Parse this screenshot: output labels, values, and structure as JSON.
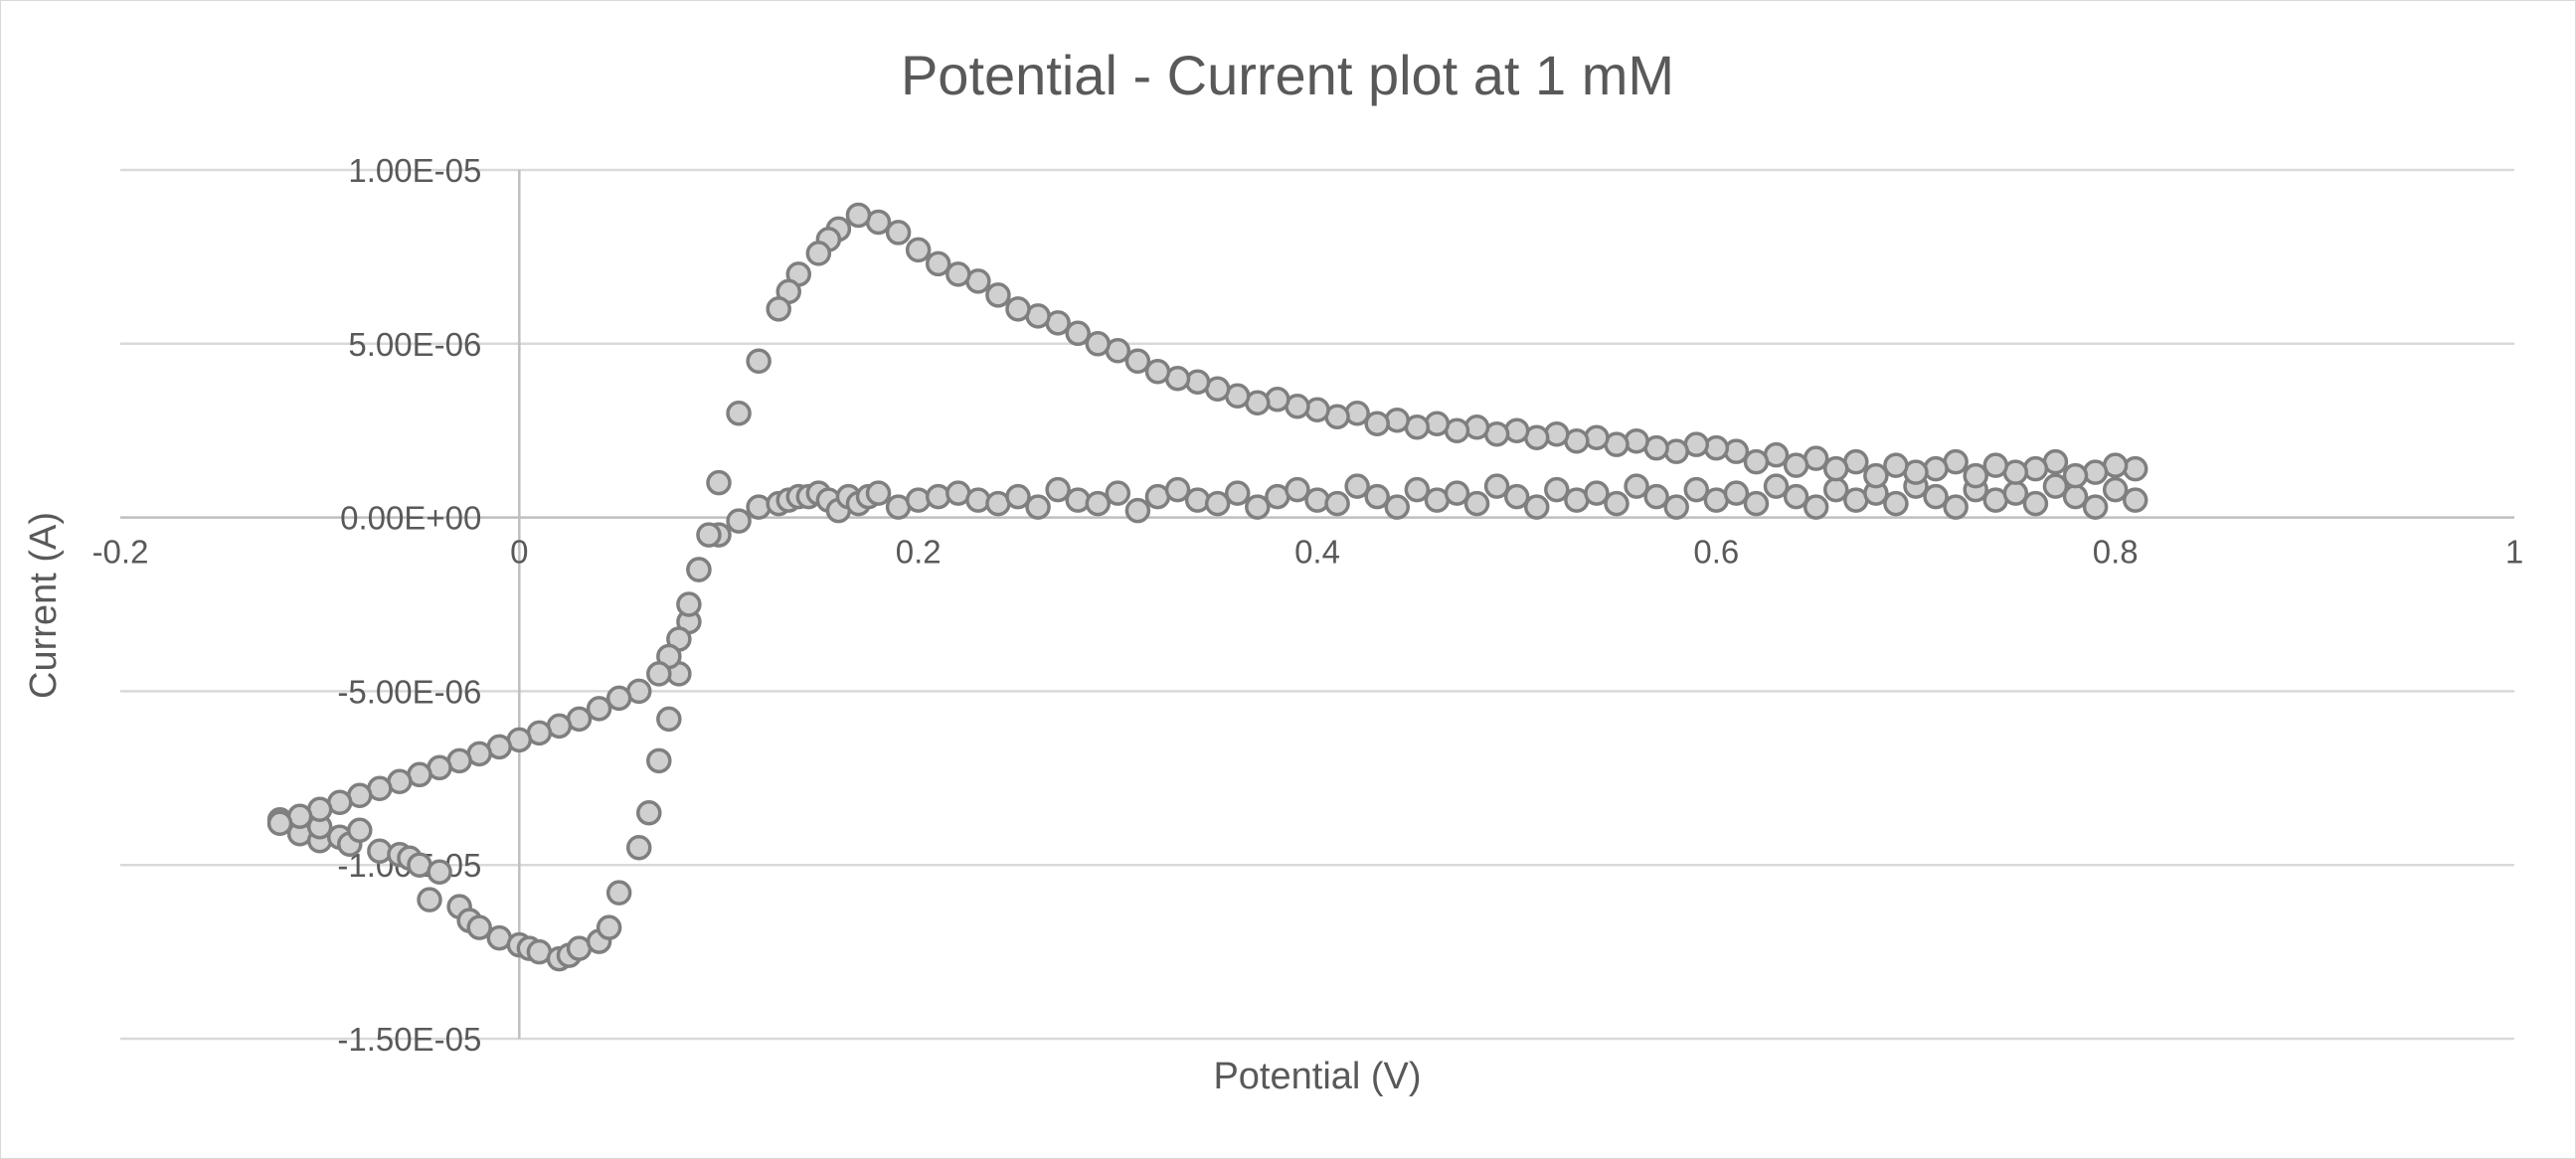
{
  "chart_data": {
    "type": "scatter",
    "title": "Potential - Current plot at 1 mM",
    "xlabel": "Potential (V)",
    "ylabel": "Current (A)",
    "xlim": [
      -0.2,
      1
    ],
    "ylim": [
      -1.5e-05,
      1e-05
    ],
    "x_ticks": [
      -0.2,
      0,
      0.2,
      0.4,
      0.6,
      0.8,
      1
    ],
    "x_tick_labels": [
      "-0.2",
      "0",
      "0.2",
      "0.4",
      "0.6",
      "0.8",
      "1"
    ],
    "y_ticks": [
      1e-05,
      5e-06,
      0,
      -5e-06,
      -1e-05,
      -1.5e-05
    ],
    "y_tick_labels": [
      "1.00E-05",
      "5.00E-06",
      "0.00E+00",
      "-5.00E-06",
      "-1.00E-05",
      "-1.50E-05"
    ],
    "grid": true,
    "legend": "none",
    "marker_fill": "#d0d0d0",
    "marker_stroke": "#7f7f7f",
    "series": [
      {
        "x": [
          -0.12,
          -0.11,
          -0.1,
          -0.1,
          -0.09,
          -0.085,
          -0.08,
          -0.07,
          -0.06,
          -0.055,
          -0.05,
          -0.045,
          -0.04,
          -0.03,
          -0.025,
          -0.02,
          -0.01,
          0,
          0.005,
          0.01,
          0.02,
          0.025,
          0.03,
          0.04,
          0.045,
          0.05,
          0.06,
          0.065,
          0.07,
          0.075,
          0.08,
          0.085,
          0.09,
          0.1,
          0.11,
          0.12,
          0.13,
          0.135,
          0.14,
          0.145,
          0.15,
          0.155,
          0.16,
          0.165,
          0.17,
          0.175,
          0.18,
          0.19,
          0.2,
          0.21,
          0.22,
          0.23,
          0.24,
          0.25,
          0.26,
          0.27,
          0.28,
          0.29,
          0.3,
          0.31,
          0.32,
          0.33,
          0.34,
          0.35,
          0.36,
          0.37,
          0.38,
          0.39,
          0.4,
          0.41,
          0.42,
          0.43,
          0.44,
          0.45,
          0.46,
          0.47,
          0.48,
          0.49,
          0.5,
          0.51,
          0.52,
          0.53,
          0.54,
          0.55,
          0.56,
          0.57,
          0.58,
          0.59,
          0.6,
          0.61,
          0.62,
          0.63,
          0.64,
          0.65,
          0.66,
          0.67,
          0.68,
          0.69,
          0.7,
          0.71,
          0.72,
          0.73,
          0.74,
          0.75,
          0.76,
          0.77,
          0.78,
          0.79,
          0.8,
          0.81,
          0.81,
          0.8,
          0.79,
          0.78,
          0.77,
          0.76,
          0.75,
          0.74,
          0.73,
          0.72,
          0.71,
          0.7,
          0.69,
          0.68,
          0.67,
          0.66,
          0.65,
          0.64,
          0.63,
          0.62,
          0.61,
          0.6,
          0.59,
          0.58,
          0.57,
          0.56,
          0.55,
          0.54,
          0.53,
          0.52,
          0.51,
          0.5,
          0.49,
          0.48,
          0.47,
          0.46,
          0.45,
          0.44,
          0.43,
          0.42,
          0.41,
          0.4,
          0.39,
          0.38,
          0.37,
          0.36,
          0.35,
          0.34,
          0.33,
          0.32,
          0.31,
          0.3,
          0.29,
          0.28,
          0.27,
          0.26,
          0.25,
          0.24,
          0.23,
          0.22,
          0.21,
          0.2,
          0.19,
          0.18,
          0.17,
          0.16,
          0.155,
          0.15,
          0.14,
          0.135,
          0.13,
          0.12,
          0.11,
          0.1,
          0.095,
          0.09,
          0.085,
          0.08,
          0.075,
          0.07,
          0.06,
          0.05,
          0.04,
          0.03,
          0.02,
          0.01,
          0,
          -0.01,
          -0.02,
          -0.03,
          -0.04,
          -0.05,
          -0.06,
          -0.07,
          -0.08,
          -0.09,
          -0.1,
          -0.11,
          -0.12
        ],
        "y": [
          -8.7e-06,
          -9.1e-06,
          -9.3e-06,
          -8.9e-06,
          -9.2e-06,
          -9.4e-06,
          -9e-06,
          -9.6e-06,
          -9.7e-06,
          -9.8e-06,
          -1e-05,
          -1.1e-05,
          -1.02e-05,
          -1.12e-05,
          -1.16e-05,
          -1.18e-05,
          -1.21e-05,
          -1.23e-05,
          -1.24e-05,
          -1.25e-05,
          -1.27e-05,
          -1.26e-05,
          -1.24e-05,
          -1.22e-05,
          -1.18e-05,
          -1.08e-05,
          -9.5e-06,
          -8.5e-06,
          -7e-06,
          -5.8e-06,
          -4.5e-06,
          -3e-06,
          -1.5e-06,
          -5e-07,
          -1e-07,
          3e-07,
          4e-07,
          5e-07,
          6e-07,
          6e-07,
          7e-07,
          5e-07,
          2e-07,
          6e-07,
          4e-07,
          6e-07,
          7e-07,
          3e-07,
          5e-07,
          6e-07,
          7e-07,
          5e-07,
          4e-07,
          6e-07,
          3e-07,
          8e-07,
          5e-07,
          4e-07,
          7e-07,
          2e-07,
          6e-07,
          8e-07,
          5e-07,
          4e-07,
          7e-07,
          3e-07,
          6e-07,
          8e-07,
          5e-07,
          4e-07,
          9e-07,
          6e-07,
          3e-07,
          8e-07,
          5e-07,
          7e-07,
          4e-07,
          9e-07,
          6e-07,
          3e-07,
          8e-07,
          5e-07,
          7e-07,
          4e-07,
          9e-07,
          6e-07,
          3e-07,
          8e-07,
          5e-07,
          7e-07,
          4e-07,
          9e-07,
          6e-07,
          3e-07,
          8e-07,
          5e-07,
          7e-07,
          4e-07,
          9e-07,
          6e-07,
          3e-07,
          8e-07,
          5e-07,
          7e-07,
          4e-07,
          9e-07,
          6e-07,
          3e-07,
          8e-07,
          5e-07,
          1.4e-06,
          1.5e-06,
          1.3e-06,
          1.2e-06,
          1.6e-06,
          1.4e-06,
          1.3e-06,
          1.5e-06,
          1.2e-06,
          1.6e-06,
          1.4e-06,
          1.3e-06,
          1.5e-06,
          1.2e-06,
          1.6e-06,
          1.4e-06,
          1.7e-06,
          1.5e-06,
          1.8e-06,
          1.6e-06,
          1.9e-06,
          2e-06,
          2.1e-06,
          1.9e-06,
          2e-06,
          2.2e-06,
          2.1e-06,
          2.3e-06,
          2.2e-06,
          2.4e-06,
          2.3e-06,
          2.5e-06,
          2.4e-06,
          2.6e-06,
          2.5e-06,
          2.7e-06,
          2.6e-06,
          2.8e-06,
          2.7e-06,
          3e-06,
          2.9e-06,
          3.1e-06,
          3.2e-06,
          3.4e-06,
          3.3e-06,
          3.5e-06,
          3.7e-06,
          3.9e-06,
          4e-06,
          4.2e-06,
          4.5e-06,
          4.8e-06,
          5e-06,
          5.3e-06,
          5.6e-06,
          5.8e-06,
          6e-06,
          6.4e-06,
          6.8e-06,
          7e-06,
          7.3e-06,
          7.7e-06,
          8.2e-06,
          8.5e-06,
          8.7e-06,
          8.3e-06,
          8e-06,
          7.6e-06,
          7e-06,
          6.5e-06,
          6e-06,
          4.5e-06,
          3e-06,
          1e-06,
          -5e-07,
          -1.5e-06,
          -2.5e-06,
          -3.5e-06,
          -4e-06,
          -4.5e-06,
          -5e-06,
          -5.2e-06,
          -5.5e-06,
          -5.8e-06,
          -6e-06,
          -6.2e-06,
          -6.4e-06,
          -6.6e-06,
          -6.8e-06,
          -7e-06,
          -7.2e-06,
          -7.4e-06,
          -7.6e-06,
          -7.8e-06,
          -8e-06,
          -8.2e-06,
          -8.4e-06,
          -8.6e-06,
          -8.8e-06
        ]
      }
    ]
  }
}
